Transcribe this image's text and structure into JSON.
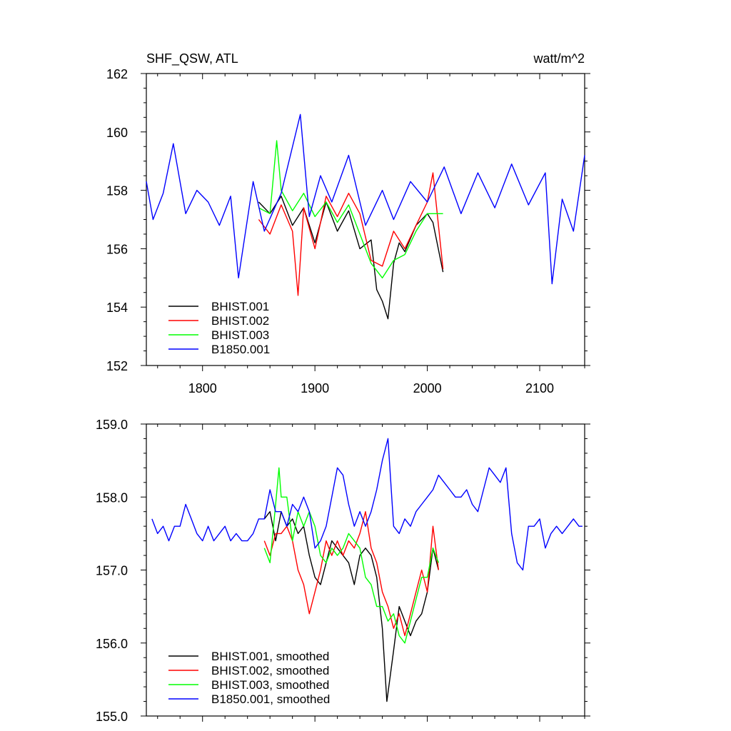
{
  "chart_data": [
    {
      "type": "line",
      "title": "SHF_QSW, ATL",
      "units": "watt/m^2",
      "xlim": [
        1750,
        2140
      ],
      "ylim": [
        152,
        162
      ],
      "x_ticks": [
        1800,
        1900,
        2000,
        2100
      ],
      "y_ticks": [
        152,
        154,
        156,
        158,
        160,
        162
      ],
      "x_tick_labels": [
        "1800",
        "1900",
        "2000",
        "2100"
      ],
      "y_tick_labels": [
        "152",
        "154",
        "156",
        "158",
        "160",
        "162"
      ],
      "legend_position": "bottom-left",
      "series": [
        {
          "name": "BHIST.001",
          "color": "#000000",
          "x": [
            1850,
            1860,
            1870,
            1880,
            1890,
            1900,
            1910,
            1920,
            1930,
            1940,
            1950,
            1955,
            1960,
            1965,
            1970,
            1975,
            1980,
            1990,
            2000,
            2005,
            2014
          ],
          "y": [
            157.6,
            157.2,
            157.8,
            156.8,
            157.4,
            156.2,
            157.6,
            156.6,
            157.3,
            156.0,
            156.3,
            154.6,
            154.2,
            153.6,
            155.5,
            156.2,
            155.9,
            156.8,
            157.2,
            156.9,
            155.2
          ]
        },
        {
          "name": "BHIST.002",
          "color": "#ff0000",
          "x": [
            1850,
            1860,
            1870,
            1880,
            1885,
            1890,
            1900,
            1910,
            1920,
            1930,
            1940,
            1950,
            1960,
            1970,
            1980,
            1990,
            2000,
            2005,
            2014
          ],
          "y": [
            157.0,
            156.5,
            157.5,
            156.6,
            154.4,
            157.4,
            156.0,
            157.8,
            157.1,
            157.9,
            157.2,
            155.6,
            155.4,
            156.6,
            156.0,
            156.8,
            157.6,
            158.6,
            155.3
          ]
        },
        {
          "name": "BHIST.003",
          "color": "#00ff00",
          "x": [
            1850,
            1860,
            1866,
            1870,
            1880,
            1890,
            1900,
            1910,
            1920,
            1930,
            1940,
            1950,
            1960,
            1970,
            1980,
            1990,
            2000,
            2014
          ],
          "y": [
            157.4,
            157.2,
            159.7,
            158.0,
            157.3,
            157.9,
            157.1,
            157.6,
            156.9,
            157.5,
            156.5,
            155.5,
            155.0,
            155.6,
            155.8,
            156.6,
            157.2,
            157.2
          ]
        },
        {
          "name": "B1850.001",
          "color": "#0000ff",
          "x": [
            1750,
            1756,
            1765,
            1774,
            1785,
            1795,
            1805,
            1815,
            1825,
            1832,
            1845,
            1855,
            1870,
            1887,
            1895,
            1905,
            1915,
            1930,
            1945,
            1960,
            1970,
            1985,
            2000,
            2015,
            2030,
            2045,
            2060,
            2075,
            2090,
            2105,
            2111,
            2120,
            2130,
            2140
          ],
          "y": [
            158.3,
            157.0,
            157.9,
            159.6,
            157.2,
            158.0,
            157.6,
            156.8,
            157.8,
            155.0,
            158.3,
            156.6,
            157.9,
            160.6,
            157.1,
            158.5,
            157.6,
            159.2,
            156.8,
            158.0,
            157.0,
            158.3,
            157.6,
            158.8,
            157.2,
            158.6,
            157.4,
            158.9,
            157.5,
            158.6,
            154.8,
            157.7,
            156.6,
            159.2
          ]
        }
      ]
    },
    {
      "type": "line",
      "xlim": [
        1750,
        2140
      ],
      "ylim": [
        155.0,
        159.0
      ],
      "x_ticks": [
        1800,
        1900,
        2000,
        2100
      ],
      "y_ticks": [
        155.0,
        156.0,
        157.0,
        158.0,
        159.0
      ],
      "y_tick_labels": [
        "155.0",
        "156.0",
        "157.0",
        "158.0",
        "159.0"
      ],
      "legend_position": "bottom-left",
      "series": [
        {
          "name": "BHIST.001, smoothed",
          "color": "#000000",
          "x": [
            1855,
            1860,
            1865,
            1870,
            1875,
            1880,
            1885,
            1890,
            1895,
            1900,
            1905,
            1910,
            1915,
            1920,
            1925,
            1930,
            1935,
            1940,
            1945,
            1950,
            1955,
            1960,
            1964,
            1970,
            1975,
            1980,
            1985,
            1990,
            1995,
            2000,
            2005,
            2010
          ],
          "y": [
            157.7,
            157.8,
            157.4,
            157.8,
            157.6,
            157.7,
            157.5,
            157.6,
            157.2,
            156.9,
            156.8,
            157.1,
            157.4,
            157.3,
            157.2,
            157.1,
            156.8,
            157.2,
            157.3,
            157.2,
            156.9,
            156.2,
            155.2,
            155.9,
            156.5,
            156.3,
            156.1,
            156.3,
            156.4,
            156.7,
            157.3,
            157.0
          ]
        },
        {
          "name": "BHIST.002, smoothed",
          "color": "#ff0000",
          "x": [
            1855,
            1860,
            1865,
            1870,
            1875,
            1880,
            1885,
            1890,
            1895,
            1900,
            1905,
            1910,
            1915,
            1920,
            1925,
            1930,
            1935,
            1940,
            1945,
            1950,
            1955,
            1960,
            1965,
            1970,
            1975,
            1980,
            1985,
            1990,
            1995,
            2000,
            2005,
            2010
          ],
          "y": [
            157.4,
            157.2,
            157.5,
            157.5,
            157.6,
            157.4,
            157.0,
            156.8,
            156.4,
            156.7,
            157.0,
            157.4,
            157.2,
            157.4,
            157.2,
            157.4,
            157.3,
            157.5,
            157.8,
            157.3,
            157.1,
            156.7,
            156.5,
            156.2,
            156.4,
            156.1,
            156.4,
            156.7,
            157.0,
            156.7,
            157.6,
            157.0
          ]
        },
        {
          "name": "BHIST.003, smoothed",
          "color": "#00ff00",
          "x": [
            1855,
            1860,
            1865,
            1868,
            1870,
            1875,
            1880,
            1885,
            1890,
            1895,
            1900,
            1905,
            1910,
            1915,
            1920,
            1925,
            1930,
            1935,
            1940,
            1945,
            1950,
            1955,
            1960,
            1965,
            1970,
            1975,
            1980,
            1985,
            1990,
            1995,
            2000,
            2005,
            2010
          ],
          "y": [
            157.3,
            157.1,
            157.9,
            158.4,
            158.0,
            158.0,
            157.4,
            157.8,
            157.6,
            157.8,
            157.6,
            157.2,
            157.1,
            157.3,
            157.2,
            157.3,
            157.5,
            157.4,
            157.3,
            156.9,
            156.8,
            156.5,
            156.5,
            156.3,
            156.4,
            156.1,
            156.0,
            156.3,
            156.6,
            156.9,
            156.9,
            157.3,
            157.1
          ]
        },
        {
          "name": "B1850.001, smoothed",
          "color": "#0000ff",
          "x": [
            1755,
            1760,
            1765,
            1770,
            1775,
            1780,
            1785,
            1790,
            1795,
            1800,
            1805,
            1810,
            1815,
            1820,
            1825,
            1830,
            1835,
            1840,
            1845,
            1850,
            1855,
            1860,
            1865,
            1870,
            1875,
            1880,
            1885,
            1890,
            1895,
            1900,
            1905,
            1910,
            1915,
            1920,
            1925,
            1930,
            1935,
            1940,
            1945,
            1950,
            1955,
            1960,
            1965,
            1970,
            1975,
            1980,
            1985,
            1990,
            1995,
            2000,
            2005,
            2010,
            2015,
            2020,
            2025,
            2030,
            2035,
            2040,
            2045,
            2050,
            2055,
            2060,
            2065,
            2070,
            2075,
            2080,
            2085,
            2090,
            2095,
            2100,
            2105,
            2110,
            2115,
            2120,
            2125,
            2130,
            2135,
            2138
          ],
          "y": [
            157.7,
            157.5,
            157.6,
            157.4,
            157.6,
            157.6,
            157.9,
            157.7,
            157.5,
            157.4,
            157.6,
            157.4,
            157.5,
            157.6,
            157.4,
            157.5,
            157.4,
            157.4,
            157.5,
            157.7,
            157.7,
            158.1,
            157.8,
            157.8,
            157.6,
            157.9,
            157.8,
            158.0,
            157.8,
            157.3,
            157.4,
            157.6,
            158.0,
            158.4,
            158.3,
            157.9,
            157.6,
            157.8,
            157.6,
            157.8,
            158.1,
            158.5,
            158.8,
            157.6,
            157.5,
            157.7,
            157.6,
            157.8,
            157.9,
            158.0,
            158.1,
            158.3,
            158.2,
            158.1,
            158.0,
            158.0,
            158.1,
            157.9,
            157.8,
            158.1,
            158.4,
            158.3,
            158.2,
            158.4,
            157.5,
            157.1,
            157.0,
            157.6,
            157.6,
            157.7,
            157.3,
            157.5,
            157.6,
            157.5,
            157.6,
            157.7,
            157.6,
            157.6
          ]
        }
      ]
    }
  ]
}
